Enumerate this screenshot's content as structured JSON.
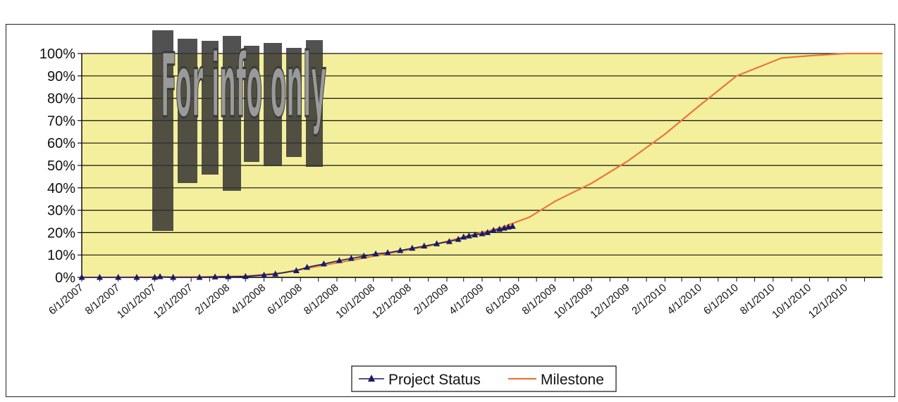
{
  "chart_data": {
    "type": "line",
    "title": "",
    "xlabel": "",
    "ylabel": "",
    "ylim": [
      0,
      1
    ],
    "y_ticks": [
      "0%",
      "10%",
      "20%",
      "30%",
      "40%",
      "50%",
      "60%",
      "70%",
      "80%",
      "90%",
      "100%"
    ],
    "x_ticks": [
      "6/1/2007",
      "8/1/2007",
      "10/1/2007",
      "12/1/2007",
      "2/1/2008",
      "4/1/2008",
      "6/1/2008",
      "8/1/2008",
      "10/1/2008",
      "12/1/2008",
      "2/1/2009",
      "4/1/2009",
      "6/1/2009",
      "8/1/2009",
      "10/1/2009",
      "12/1/2009",
      "2/1/2010",
      "4/1/2010",
      "6/1/2010",
      "8/1/2010",
      "10/1/2010",
      "12/1/2010"
    ],
    "x_range": [
      "2007-06-01",
      "2011-01-31"
    ],
    "grid": true,
    "plot_background": "#f4ef9c",
    "legend_position": "bottom",
    "watermark": "For info only",
    "series": [
      {
        "name": "Project Status",
        "color": "#1a1a66",
        "marker": "triangle",
        "points": [
          [
            "2007-06-01",
            0.0
          ],
          [
            "2007-07-01",
            0.0
          ],
          [
            "2007-08-01",
            0.0
          ],
          [
            "2007-09-01",
            0.0
          ],
          [
            "2007-10-01",
            0.0
          ],
          [
            "2007-10-10",
            0.003
          ],
          [
            "2007-11-01",
            0.0
          ],
          [
            "2007-12-15",
            0.0
          ],
          [
            "2008-01-10",
            0.002
          ],
          [
            "2008-02-01",
            0.003
          ],
          [
            "2008-03-01",
            0.004
          ],
          [
            "2008-04-01",
            0.01
          ],
          [
            "2008-04-20",
            0.015
          ],
          [
            "2008-05-25",
            0.03
          ],
          [
            "2008-06-12",
            0.045
          ],
          [
            "2008-07-10",
            0.06
          ],
          [
            "2008-08-05",
            0.075
          ],
          [
            "2008-08-25",
            0.085
          ],
          [
            "2008-09-15",
            0.095
          ],
          [
            "2008-10-05",
            0.105
          ],
          [
            "2008-10-25",
            0.11
          ],
          [
            "2008-11-15",
            0.12
          ],
          [
            "2008-12-05",
            0.13
          ],
          [
            "2008-12-25",
            0.14
          ],
          [
            "2009-01-15",
            0.15
          ],
          [
            "2009-02-05",
            0.16
          ],
          [
            "2009-02-20",
            0.17
          ],
          [
            "2009-03-01",
            0.18
          ],
          [
            "2009-03-10",
            0.185
          ],
          [
            "2009-03-20",
            0.19
          ],
          [
            "2009-04-01",
            0.195
          ],
          [
            "2009-04-10",
            0.2
          ],
          [
            "2009-04-20",
            0.21
          ],
          [
            "2009-04-30",
            0.215
          ],
          [
            "2009-05-08",
            0.22
          ],
          [
            "2009-05-15",
            0.225
          ],
          [
            "2009-05-22",
            0.228
          ]
        ]
      },
      {
        "name": "Milestone",
        "color": "#e8763a",
        "points": [
          [
            "2007-06-01",
            0.0
          ],
          [
            "2007-12-01",
            0.002
          ],
          [
            "2008-03-01",
            0.005
          ],
          [
            "2008-05-01",
            0.02
          ],
          [
            "2008-07-01",
            0.05
          ],
          [
            "2008-09-01",
            0.08
          ],
          [
            "2008-11-01",
            0.11
          ],
          [
            "2009-01-01",
            0.14
          ],
          [
            "2009-03-01",
            0.18
          ],
          [
            "2009-05-01",
            0.22
          ],
          [
            "2009-06-20",
            0.27
          ],
          [
            "2009-08-01",
            0.34
          ],
          [
            "2009-10-01",
            0.42
          ],
          [
            "2009-12-01",
            0.52
          ],
          [
            "2010-02-01",
            0.64
          ],
          [
            "2010-04-01",
            0.77
          ],
          [
            "2010-06-01",
            0.9
          ],
          [
            "2010-08-15",
            0.98
          ],
          [
            "2010-10-01",
            0.99
          ],
          [
            "2010-12-01",
            1.0
          ],
          [
            "2011-01-31",
            1.0
          ]
        ]
      }
    ]
  }
}
